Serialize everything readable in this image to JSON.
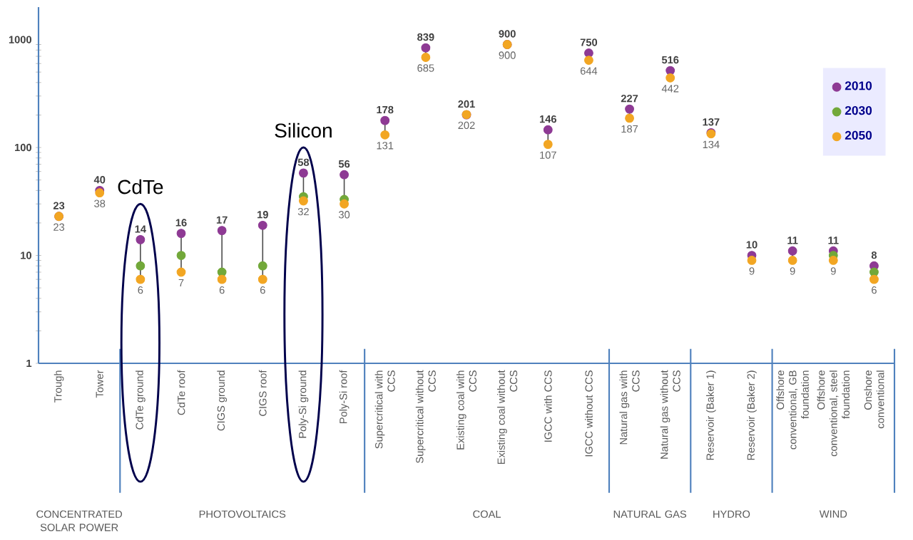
{
  "chart_data": {
    "type": "scatter",
    "log": true,
    "marker": "circle",
    "legend": "top right",
    "grid": false,
    "categories": [
      "Trough",
      "Tower",
      "CdTe ground",
      "CdTe roof",
      "CIGS ground",
      "CIGS roof",
      "Poly-Si ground",
      "Poly-Si roof",
      "Supercritical with CCS",
      "Supercritical without CCS",
      "Existing coal with CCS",
      "Existing coal without CCS",
      "IGCC with CCS",
      "IGCC without CCS",
      "Natural gas with CCS",
      "Natural gas without CCS",
      "Reservoir (Baker 1)",
      "Reservoir (Baker 2)",
      "Offshore conventional, GB foundation",
      "Offshore conventional, steel foundation",
      "Onshore conventional"
    ],
    "ylim": [
      1,
      2000
    ],
    "yticks": [
      1,
      10,
      100,
      1000
    ],
    "series": [
      {
        "name": "2010",
        "color": "#8e3a94",
        "values": [
          23,
          40,
          14,
          16,
          17,
          19,
          58,
          56,
          178,
          839,
          201,
          900,
          146,
          750,
          227,
          516,
          137,
          10,
          11,
          11,
          8
        ],
        "value_labels": [
          "23",
          "40",
          "14",
          "16",
          "17",
          "19",
          "58",
          "56",
          "178",
          "839",
          "201",
          "900",
          "146",
          "750",
          "227",
          "516",
          "137",
          "10",
          "11",
          "11",
          "8"
        ]
      },
      {
        "name": "2030",
        "color": "#72a83a",
        "values": [
          null,
          null,
          8,
          10,
          7,
          8,
          35,
          33,
          null,
          null,
          null,
          null,
          null,
          null,
          null,
          null,
          null,
          null,
          null,
          10,
          7
        ]
      },
      {
        "name": "2050",
        "color": "#f2a623",
        "values": [
          23,
          38,
          6,
          7,
          6,
          6,
          32,
          30,
          131,
          685,
          202,
          900,
          107,
          644,
          187,
          442,
          134,
          9,
          9,
          9,
          6
        ],
        "value_labels": [
          "23",
          "38",
          "6",
          "7",
          "6",
          "6",
          "32",
          "30",
          "131",
          "685",
          "202",
          "900",
          "107",
          "644",
          "187",
          "442",
          "134",
          "9",
          "9",
          "9",
          "6"
        ]
      }
    ],
    "annotations": [
      "CdTe",
      "Silicon",
      "CONCENTRATED SOLAR POWER",
      "PHOTOVOLTAICS",
      "COAL",
      "NATURAL GAS",
      "HYDRO",
      "WIND"
    ]
  }
}
